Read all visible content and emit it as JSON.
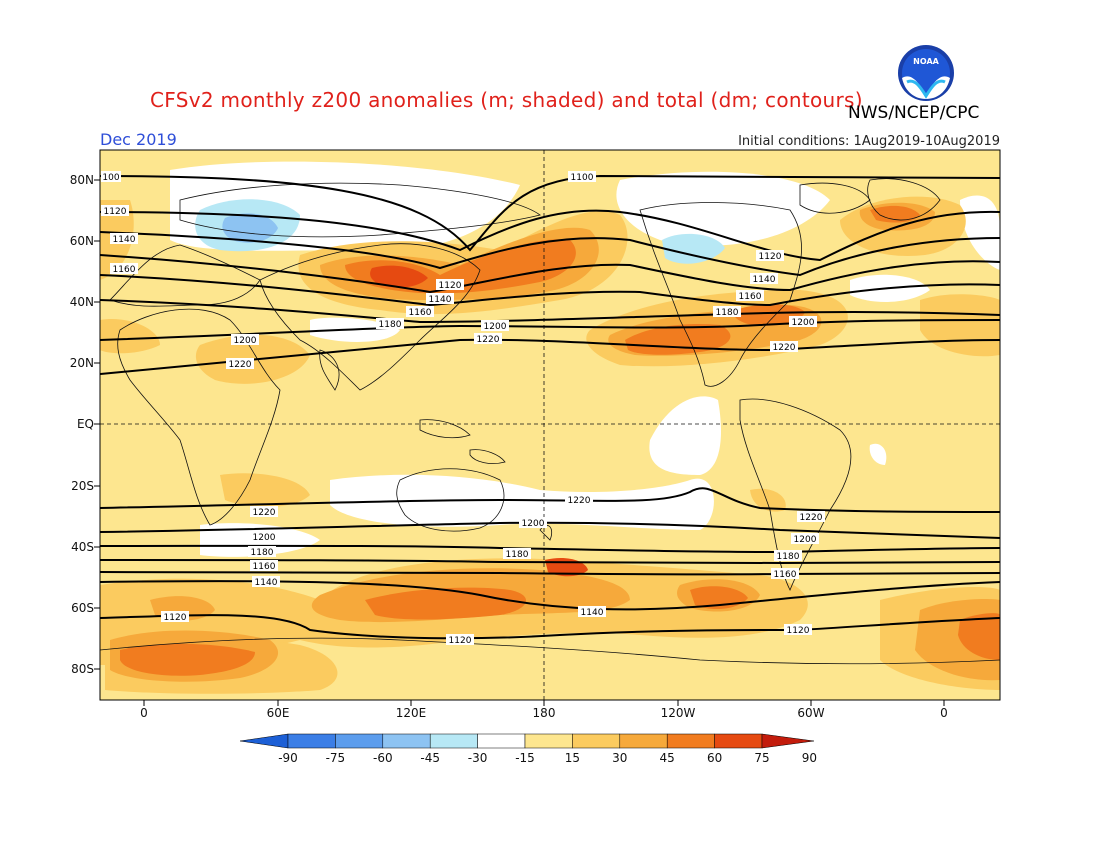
{
  "title": "CFSv2 monthly z200 anomalies (m; shaded) and total (dm; contours)",
  "valid": "Dec 2019",
  "initial_conditions": "Initial conditions: 1Aug2019-10Aug2019",
  "agency": "NWS/NCEP/CPC",
  "logo_text": "NOAA",
  "lat_labels": [
    "80N",
    "60N",
    "40N",
    "20N",
    "EQ",
    "20S",
    "40S",
    "60S",
    "80S"
  ],
  "lon_labels": [
    "0",
    "60E",
    "120E",
    "180",
    "120W",
    "60W",
    "0"
  ],
  "colorbar": {
    "labels": [
      "-90",
      "-75",
      "-60",
      "-45",
      "-30",
      "-15",
      "15",
      "30",
      "45",
      "60",
      "75",
      "90"
    ],
    "colors": [
      "#1c5fd6",
      "#3b7ee6",
      "#5c9ded",
      "#8dc3f2",
      "#b7e8f5",
      "#ffffff",
      "#fde68f",
      "#fbcb5f",
      "#f6a93b",
      "#f17c1f",
      "#e64a11",
      "#c31c0c"
    ]
  },
  "contour_labels": {
    "1100": "1100",
    "1100b": "100",
    "1120": "1120",
    "1140": "1140",
    "1160": "1160",
    "1180": "1180",
    "1200": "1200",
    "1220": "1220"
  }
}
